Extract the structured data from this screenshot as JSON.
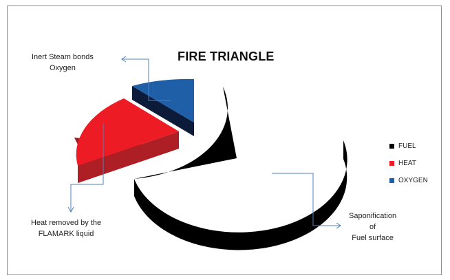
{
  "chart_data": {
    "type": "pie",
    "title": "FIRE TRIANGLE",
    "categories": [
      "FUEL",
      "HEAT",
      "OXYGEN"
    ],
    "values": [
      66,
      24,
      10
    ],
    "exploded": [
      "HEAT",
      "OXYGEN"
    ],
    "three_d": true,
    "legend_position": "right",
    "colors": {
      "FUEL": "#000000",
      "HEAT": "#ed1c24",
      "OXYGEN": "#1f5fa8"
    },
    "annotations": [
      {
        "target": "OXYGEN",
        "lines": [
          "Inert Steam bonds",
          "Oxygen"
        ]
      },
      {
        "target": "HEAT",
        "lines": [
          "Heat removed by the",
          "FLAMARK liquid"
        ]
      },
      {
        "target": "FUEL",
        "lines": [
          "Saponification",
          "of",
          "Fuel surface"
        ]
      }
    ]
  }
}
